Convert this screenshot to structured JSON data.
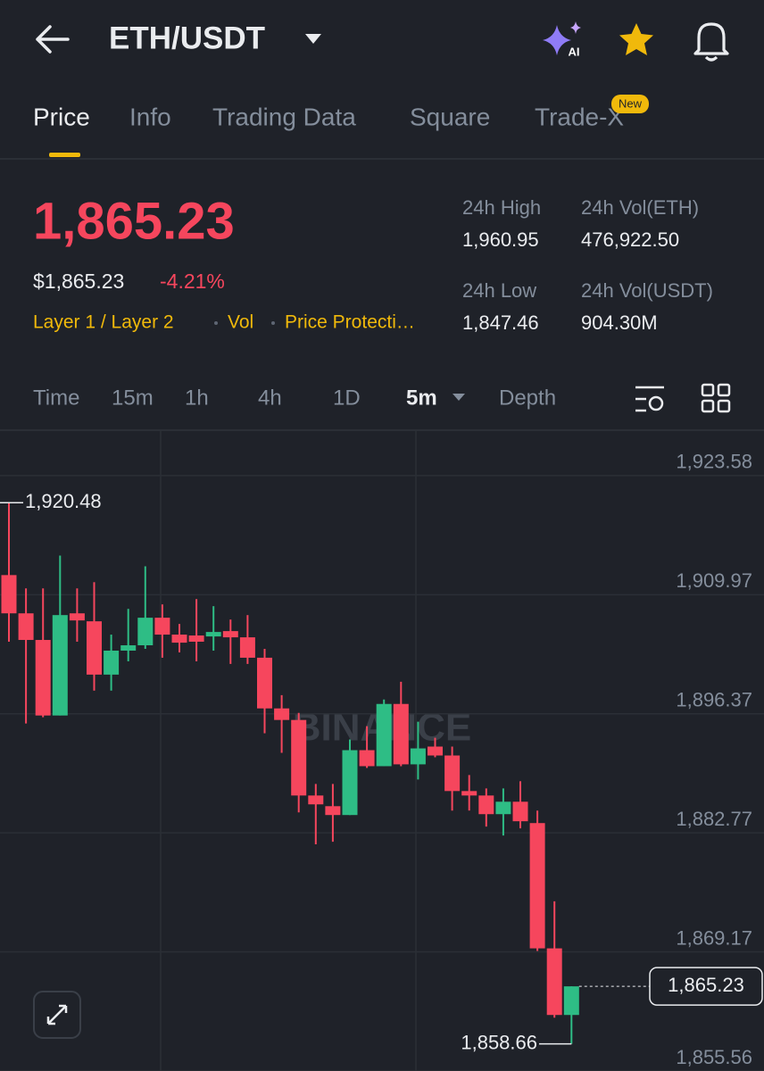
{
  "header": {
    "title": "ETH/USDT",
    "ai_badge": "AI"
  },
  "tabs": [
    "Price",
    "Info",
    "Trading Data",
    "Square",
    "Trade-X"
  ],
  "new_badge": "New",
  "price": {
    "last": "1,865.23",
    "usd": "$1,865.23",
    "change": "-4.21%"
  },
  "tags": [
    "Layer 1 / Layer 2",
    "Vol",
    "Price Protecti…"
  ],
  "stats": [
    {
      "label": "24h High",
      "value": "1,960.95"
    },
    {
      "label": "24h Vol(ETH)",
      "value": "476,922.50"
    },
    {
      "label": "24h Low",
      "value": "1,847.46"
    },
    {
      "label": "24h Vol(USDT)",
      "value": "904.30M"
    }
  ],
  "intervals": [
    "Time",
    "15m",
    "1h",
    "4h",
    "1D",
    "5m",
    "Depth"
  ],
  "chart_data": {
    "type": "candlestick",
    "watermark": "BINANCE",
    "up_color": "#2ebd85",
    "down_color": "#f6465d",
    "ylim": [
      1855.56,
      1928.66
    ],
    "yticks": [
      {
        "value": 1923.58,
        "label": "1,923.58"
      },
      {
        "value": 1909.97,
        "label": "1,909.97"
      },
      {
        "value": 1896.37,
        "label": "1,896.37"
      },
      {
        "value": 1882.77,
        "label": "1,882.77"
      },
      {
        "value": 1869.17,
        "label": "1,869.17"
      },
      {
        "value": 1855.56,
        "label": "1,855.56"
      }
    ],
    "grid": true,
    "open": [
      1912.21,
      1907.84,
      1904.8,
      1896.17,
      1907.84,
      1906.93,
      1900.84,
      1903.58,
      1904.19,
      1907.34,
      1905.41,
      1905.31,
      1905.2,
      1905.81,
      1905.1,
      1902.77,
      1896.98,
      1895.66,
      1887.03,
      1885.81,
      1884.8,
      1892.21,
      1890.38,
      1897.49,
      1890.59,
      1892.62,
      1891.6,
      1887.54,
      1887.03,
      1884.9,
      1886.32,
      1883.88,
      1869.57,
      1861.96
    ],
    "high": [
      1920.48,
      1910.69,
      1910.69,
      1914.44,
      1910.69,
      1911.4,
      1905.41,
      1908.35,
      1913.22,
      1908.86,
      1906.63,
      1909.47,
      1908.66,
      1907.13,
      1907.64,
      1903.78,
      1898.5,
      1896.47,
      1888.35,
      1888.35,
      1893.43,
      1894.95,
      1898.0,
      1900.03,
      1895.46,
      1893.63,
      1892.62,
      1889.37,
      1887.84,
      1887.84,
      1888.66,
      1885.31,
      1874.95,
      1865.23
    ],
    "low": [
      1904.6,
      1895.26,
      1895.97,
      1896.17,
      1904.6,
      1899.01,
      1899.01,
      1902.36,
      1903.78,
      1902.77,
      1903.38,
      1902.36,
      1903.58,
      1902.06,
      1902.06,
      1894.14,
      1891.9,
      1885.1,
      1881.45,
      1881.75,
      1884.8,
      1890.18,
      1890.38,
      1890.38,
      1888.86,
      1891.4,
      1885.31,
      1885.31,
      1883.48,
      1882.46,
      1883.28,
      1869.27,
      1861.65,
      1858.66
    ],
    "close": [
      1907.84,
      1904.8,
      1896.17,
      1907.64,
      1907.03,
      1900.84,
      1903.58,
      1904.19,
      1907.34,
      1905.41,
      1904.49,
      1904.6,
      1905.71,
      1905.1,
      1902.77,
      1896.98,
      1895.66,
      1887.03,
      1886.02,
      1884.8,
      1892.21,
      1890.38,
      1897.49,
      1890.59,
      1892.41,
      1891.6,
      1887.54,
      1887.03,
      1884.9,
      1886.32,
      1884.09,
      1869.57,
      1861.96,
      1865.23
    ],
    "high_marker": {
      "value": 1920.48,
      "label": "1,920.48"
    },
    "low_marker": {
      "value": 1858.66,
      "label": "1,858.66"
    },
    "last_price": {
      "value": 1865.23,
      "label": "1,865.23"
    }
  }
}
